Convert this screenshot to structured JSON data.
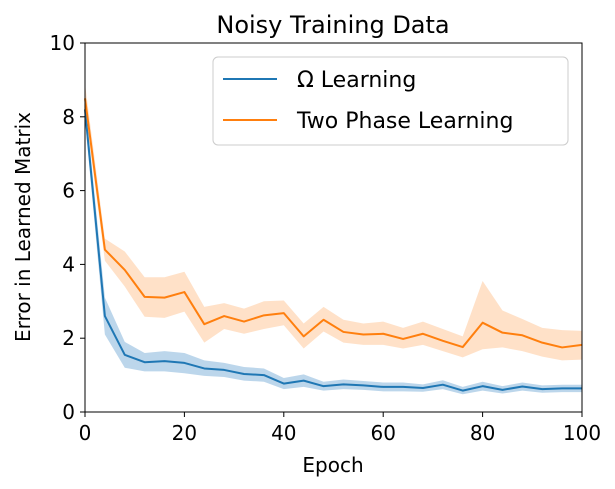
{
  "chart_data": {
    "type": "line",
    "title": "Noisy Training Data",
    "xlabel": "Epoch",
    "ylabel": "Error in Learned Matrix",
    "xlim": [
      0,
      100
    ],
    "ylim": [
      0,
      10
    ],
    "xticks": [
      "0",
      "20",
      "40",
      "60",
      "80",
      "100"
    ],
    "yticks": [
      "0",
      "2",
      "4",
      "6",
      "8",
      "10"
    ],
    "grid": false,
    "legend_position": "top-right",
    "x": [
      0,
      4,
      8,
      12,
      16,
      20,
      24,
      28,
      32,
      36,
      40,
      44,
      48,
      52,
      56,
      60,
      64,
      68,
      72,
      76,
      80,
      84,
      88,
      92,
      96,
      100
    ],
    "series": [
      {
        "name": "Ω Learning",
        "color": "#1f77b4",
        "band_color": "#a6c8e4",
        "values": [
          8.2,
          2.6,
          1.55,
          1.35,
          1.38,
          1.33,
          1.18,
          1.14,
          1.03,
          1.0,
          0.77,
          0.85,
          0.7,
          0.75,
          0.72,
          0.68,
          0.68,
          0.65,
          0.74,
          0.58,
          0.7,
          0.6,
          0.69,
          0.62,
          0.64,
          0.64
        ],
        "lower": [
          7.9,
          2.1,
          1.2,
          1.1,
          1.1,
          1.05,
          0.98,
          0.95,
          0.85,
          0.82,
          0.62,
          0.68,
          0.58,
          0.62,
          0.6,
          0.56,
          0.56,
          0.55,
          0.62,
          0.48,
          0.58,
          0.5,
          0.58,
          0.52,
          0.54,
          0.54
        ],
        "upper": [
          8.5,
          3.1,
          1.9,
          1.6,
          1.65,
          1.6,
          1.4,
          1.33,
          1.22,
          1.18,
          0.92,
          1.02,
          0.82,
          0.88,
          0.84,
          0.8,
          0.8,
          0.75,
          0.86,
          0.68,
          0.82,
          0.7,
          0.8,
          0.72,
          0.74,
          0.74
        ]
      },
      {
        "name": "Two Phase Learning",
        "color": "#ff7f0e",
        "band_color": "#ffd7b5",
        "values": [
          8.5,
          4.4,
          3.85,
          3.12,
          3.1,
          3.25,
          2.38,
          2.6,
          2.45,
          2.62,
          2.68,
          2.05,
          2.5,
          2.17,
          2.1,
          2.12,
          1.98,
          2.12,
          1.93,
          1.76,
          2.42,
          2.15,
          2.08,
          1.88,
          1.75,
          1.82
        ],
        "lower": [
          8.2,
          4.1,
          3.4,
          2.58,
          2.55,
          2.72,
          1.88,
          2.25,
          2.12,
          2.25,
          2.35,
          1.72,
          2.18,
          1.88,
          1.82,
          1.82,
          1.72,
          1.82,
          1.65,
          1.48,
          1.7,
          1.75,
          1.65,
          1.5,
          1.4,
          1.42
        ],
        "upper": [
          8.9,
          4.7,
          4.35,
          3.65,
          3.65,
          3.8,
          2.85,
          2.95,
          2.8,
          3.0,
          3.02,
          2.4,
          2.85,
          2.5,
          2.4,
          2.45,
          2.28,
          2.45,
          2.25,
          2.05,
          3.55,
          2.75,
          2.52,
          2.28,
          2.22,
          2.2
        ]
      }
    ]
  }
}
